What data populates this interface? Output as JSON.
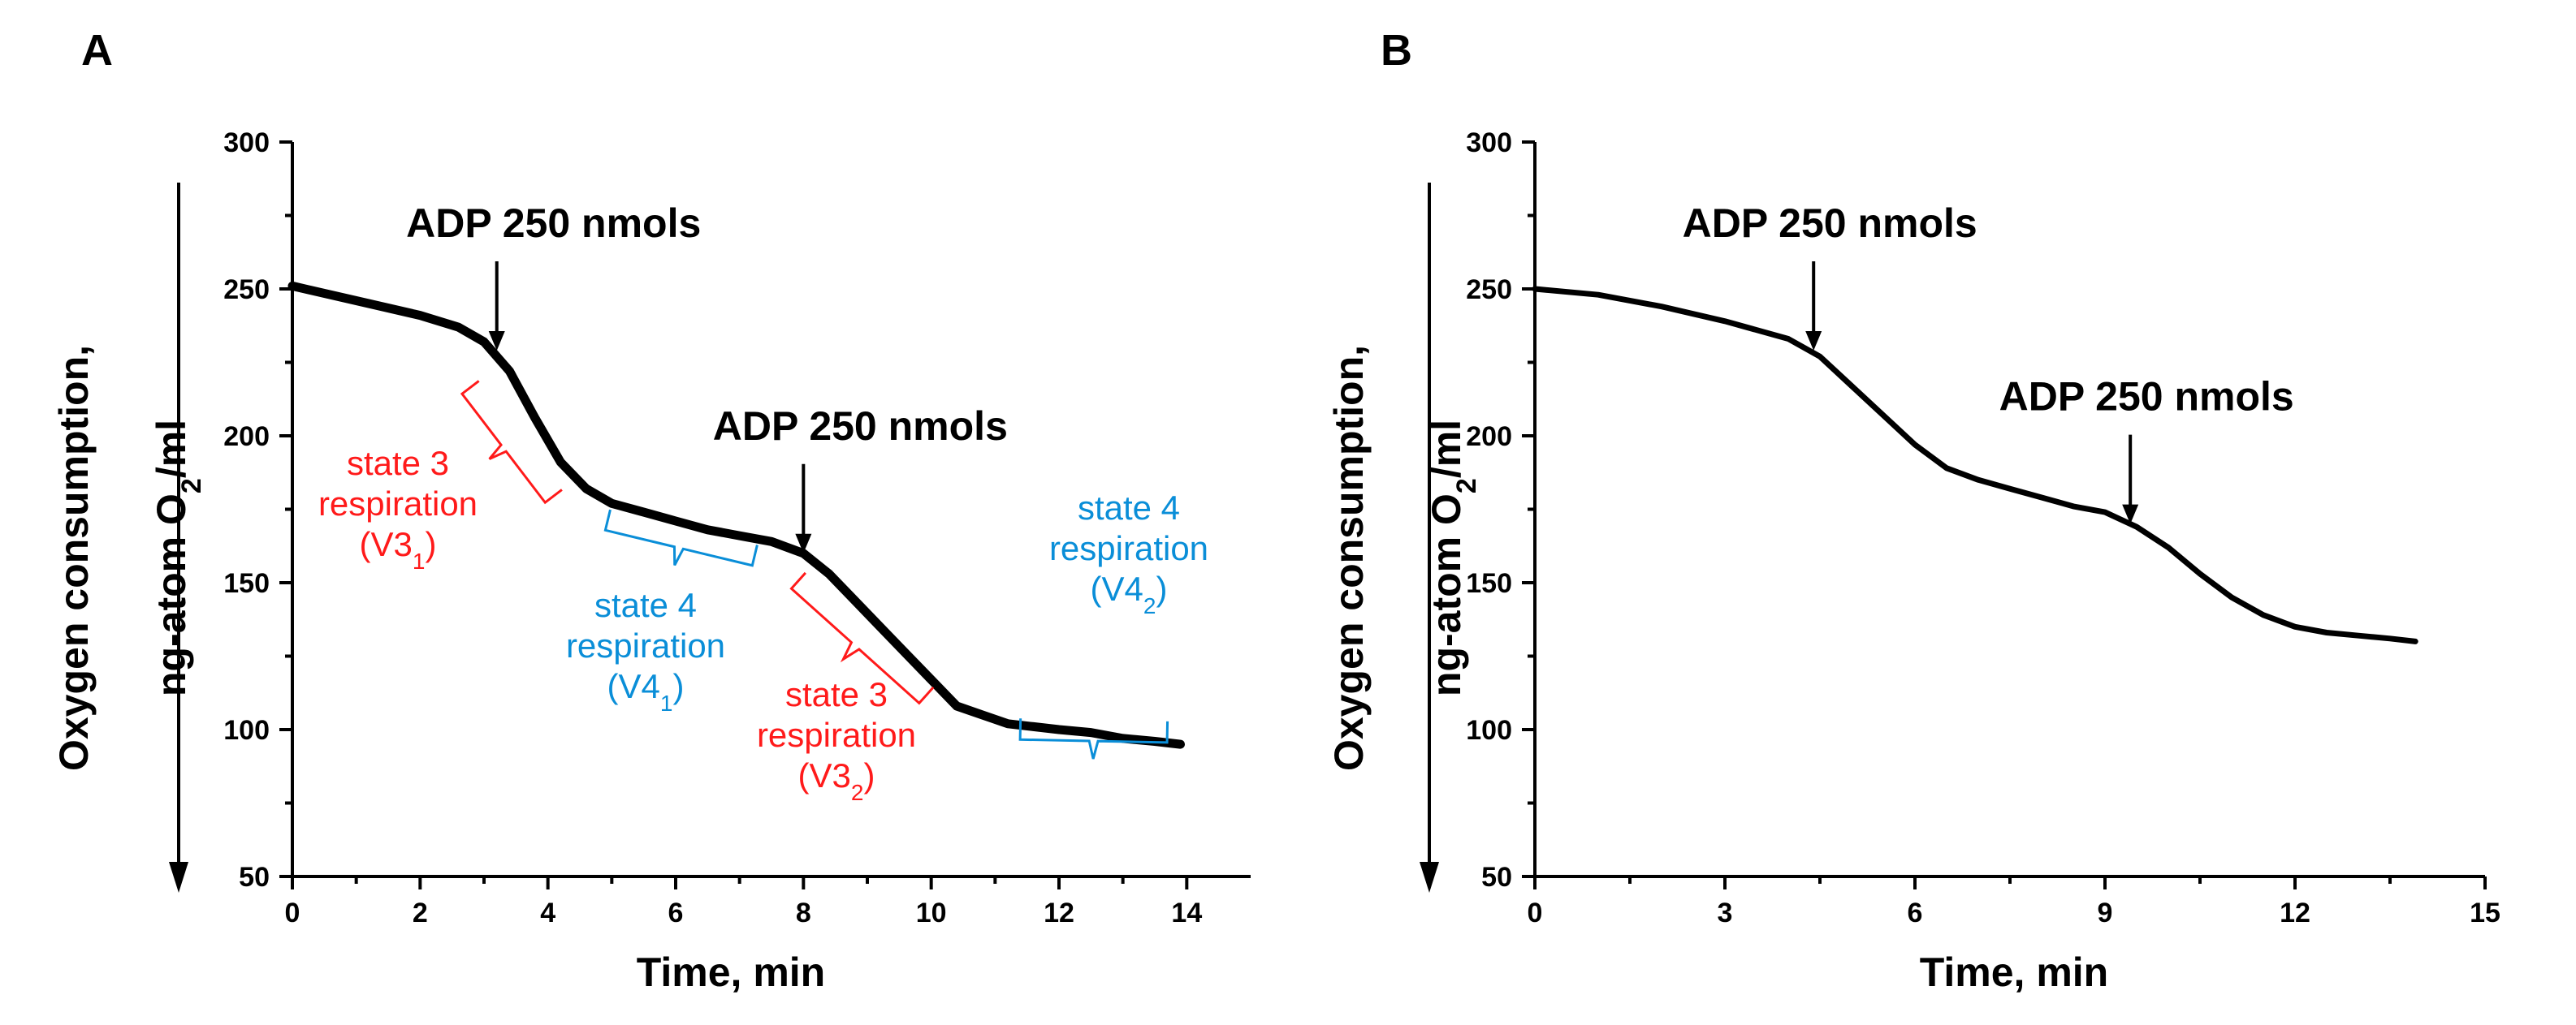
{
  "chart_data": [
    {
      "type": "line",
      "panel_label": "A",
      "xlabel": "Time, min",
      "ylabel_line1": "Oxygen consumption,",
      "ylabel_line2": "ng-atom O",
      "ylabel_sub": "2",
      "ylabel_tail": "/ml",
      "xlim": [
        0,
        15
      ],
      "ylim": [
        50,
        300
      ],
      "xticks": [
        0,
        2,
        4,
        6,
        8,
        10,
        12,
        14
      ],
      "yticks": [
        50,
        100,
        150,
        200,
        250,
        300
      ],
      "series": [
        {
          "name": "oxygen",
          "color": "#000000",
          "x": [
            0,
            1,
            2,
            2.6,
            3.0,
            3.4,
            3.8,
            4.2,
            4.6,
            5.0,
            5.5,
            6,
            6.5,
            7,
            7.5,
            8.0,
            8.4,
            8.8,
            9.2,
            9.6,
            10.0,
            10.4,
            10.8,
            11.2,
            11.6,
            12,
            12.5,
            13,
            13.5,
            13.9
          ],
          "y": [
            251,
            246,
            241,
            237,
            232,
            222,
            206,
            191,
            182,
            177,
            174,
            171,
            168,
            166,
            164,
            160,
            153,
            144,
            135,
            126,
            117,
            108,
            105,
            102,
            101,
            100,
            99,
            97,
            96,
            95
          ]
        }
      ],
      "arrows": [
        {
          "x": 3.2,
          "y": 229,
          "label": "ADP 250 nmols"
        },
        {
          "x": 8.0,
          "y": 160,
          "label": "ADP 250 nmols"
        }
      ],
      "brackets": [
        {
          "color": "#ff1a1a",
          "x1": 3.0,
          "y1": 220,
          "x2": 4.3,
          "y2": 183,
          "label_lines": [
            "state 3",
            "respiration"
          ],
          "label_main": "(V3",
          "label_sub": "1",
          "label_end": ")"
        },
        {
          "color": "#0a8ed8",
          "x1": 5.0,
          "y1": 177,
          "x2": 7.3,
          "y2": 165,
          "label_lines": [
            "state 4",
            "respiration"
          ],
          "label_main": "(V4",
          "label_sub": "1",
          "label_end": ")"
        },
        {
          "color": "#ff1a1a",
          "x1": 8.1,
          "y1": 155,
          "x2": 10.1,
          "y2": 116,
          "label_lines": [
            "state 3",
            "respiration"
          ],
          "label_main": "(V3",
          "label_sub": "2",
          "label_end": ")"
        },
        {
          "color": "#0a8ed8",
          "x1": 11.4,
          "y1": 106,
          "x2": 13.7,
          "y2": 105,
          "label_lines": [
            "state 4",
            "respiration"
          ],
          "label_main": "(V4",
          "label_sub": "2",
          "label_end": ")"
        }
      ]
    },
    {
      "type": "line",
      "panel_label": "B",
      "xlabel": "Time, min",
      "ylabel_line1": "Oxygen consumption,",
      "ylabel_line2": "ng-atom O",
      "ylabel_sub": "2",
      "ylabel_tail": "/ml",
      "xlim": [
        0,
        15
      ],
      "ylim": [
        50,
        300
      ],
      "xticks": [
        0,
        3,
        6,
        9,
        12,
        15
      ],
      "yticks": [
        50,
        100,
        150,
        200,
        250,
        300
      ],
      "series": [
        {
          "name": "oxygen",
          "color": "#000000",
          "x": [
            0,
            1,
            2,
            3,
            4,
            4.5,
            5,
            5.5,
            6,
            6.5,
            7,
            7.5,
            8,
            8.5,
            9,
            9.5,
            10,
            10.5,
            11,
            11.5,
            12,
            12.5,
            13,
            13.5,
            13.9
          ],
          "y": [
            250,
            248,
            244,
            239,
            233,
            227,
            217,
            207,
            197,
            189,
            185,
            182,
            179,
            176,
            174,
            169,
            162,
            153,
            145,
            139,
            135,
            133,
            132,
            131,
            130
          ]
        }
      ],
      "arrows": [
        {
          "x": 4.4,
          "y": 229,
          "label": "ADP 250 nmols"
        },
        {
          "x": 9.4,
          "y": 170,
          "label": "ADP 250 nmols"
        }
      ],
      "brackets": []
    }
  ]
}
